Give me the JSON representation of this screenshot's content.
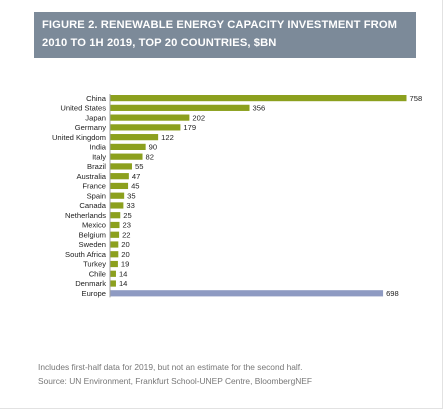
{
  "header": {
    "line1": "FIGURE 2. RENEWABLE ENERGY CAPACITY INVESTMENT FROM",
    "line2": "2010 TO 1H 2019, TOP 20 COUNTRIES, $BN"
  },
  "chart_data": {
    "type": "bar",
    "orientation": "horizontal",
    "title": "FIGURE 2. RENEWABLE ENERGY CAPACITY INVESTMENT FROM 2010 TO 1H 2019, TOP 20 COUNTRIES, $BN",
    "categories": [
      "China",
      "United States",
      "Japan",
      "Germany",
      "United Kingdom",
      "India",
      "Italy",
      "Brazil",
      "Australia",
      "France",
      "Spain",
      "Canada",
      "Netherlands",
      "Mexico",
      "Belgium",
      "Sweden",
      "South Africa",
      "Turkey",
      "Chile",
      "Denmark",
      "Europe"
    ],
    "values": [
      758,
      356,
      202,
      179,
      122,
      90,
      82,
      55,
      47,
      45,
      35,
      33,
      25,
      23,
      22,
      20,
      20,
      19,
      14,
      14,
      698
    ],
    "bar_colors": [
      "#8ca01e",
      "#8ca01e",
      "#8ca01e",
      "#8ca01e",
      "#8ca01e",
      "#8ca01e",
      "#8ca01e",
      "#8ca01e",
      "#8ca01e",
      "#8ca01e",
      "#8ca01e",
      "#8ca01e",
      "#8ca01e",
      "#8ca01e",
      "#8ca01e",
      "#8ca01e",
      "#8ca01e",
      "#8ca01e",
      "#8ca01e",
      "#8ca01e",
      "#8e9ac2"
    ],
    "xlim": [
      0,
      758
    ],
    "grid": false,
    "legend": "none",
    "data_labels": true
  },
  "footnotes": {
    "note": "Includes first-half data for 2019, but not an estimate for the second half.",
    "source": "Source: UN Environment, Frankfurt School-UNEP Centre, BloombergNEF"
  },
  "colors": {
    "header_bg": "#7c8a99",
    "country_bar": "#8ca01e",
    "region_bar": "#8e9ac2",
    "axis": "#8a8a8a"
  }
}
